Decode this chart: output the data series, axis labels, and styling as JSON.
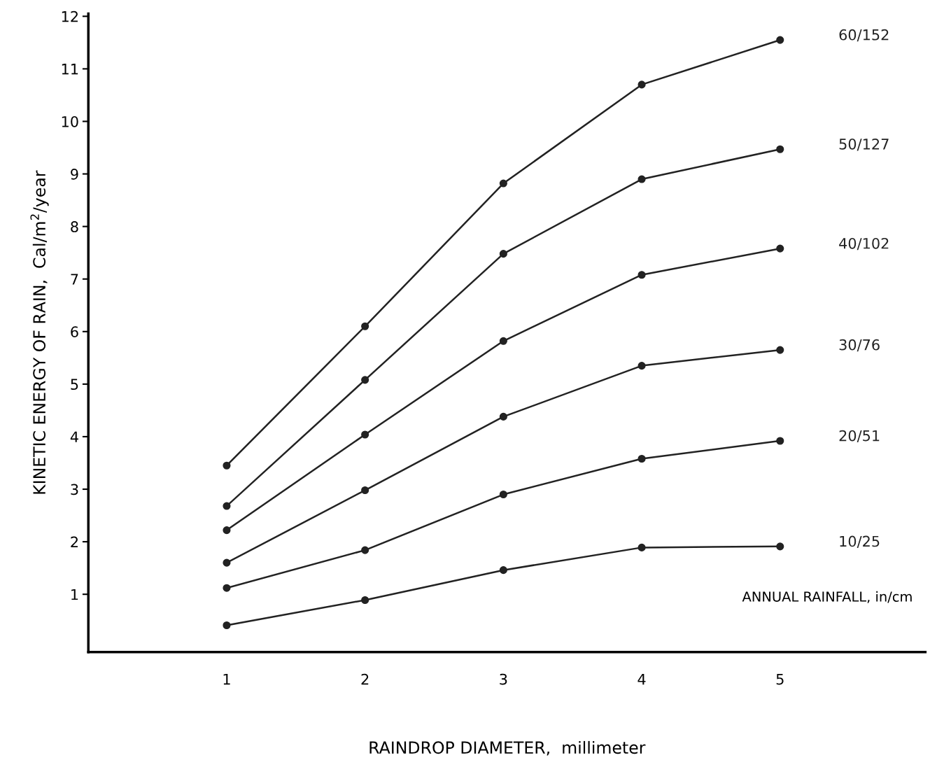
{
  "chart_data": {
    "type": "line",
    "xlabel": "RAINDROP DIAMETER,  millimeter",
    "ylabel": "KINETIC ENERGY OF RAIN,  Cal/m$^{2}$/year",
    "x": [
      1,
      2,
      3,
      4,
      5
    ],
    "series": [
      {
        "name": "60/152",
        "color": "#222222",
        "values": [
          3.45,
          6.1,
          8.82,
          10.7,
          11.55
        ]
      },
      {
        "name": "50/127",
        "color": "#222222",
        "values": [
          2.68,
          5.08,
          7.48,
          8.9,
          9.47
        ]
      },
      {
        "name": "40/102",
        "color": "#222222",
        "values": [
          2.22,
          4.04,
          5.82,
          7.08,
          7.58
        ]
      },
      {
        "name": "30/76",
        "color": "#222222",
        "values": [
          1.6,
          2.98,
          4.38,
          5.35,
          5.65
        ]
      },
      {
        "name": "20/51",
        "color": "#222222",
        "values": [
          1.12,
          1.84,
          2.9,
          3.58,
          3.92
        ]
      },
      {
        "name": "10/25",
        "color": "#222222",
        "values": [
          0.41,
          0.89,
          1.46,
          1.89,
          1.91
        ]
      }
    ],
    "annotations": [
      "ANNUAL RAINFALL, in/cm"
    ],
    "xlim": [
      0,
      6.05
    ],
    "ylim": [
      -0.1,
      12.05
    ],
    "xticks": [
      1,
      2,
      3,
      4,
      5
    ],
    "yticks": [
      1,
      2,
      3,
      4,
      5,
      6,
      7,
      8,
      9,
      10,
      11,
      12
    ],
    "marker": "circle",
    "line_style": "solid",
    "grid": false,
    "legend": false
  }
}
